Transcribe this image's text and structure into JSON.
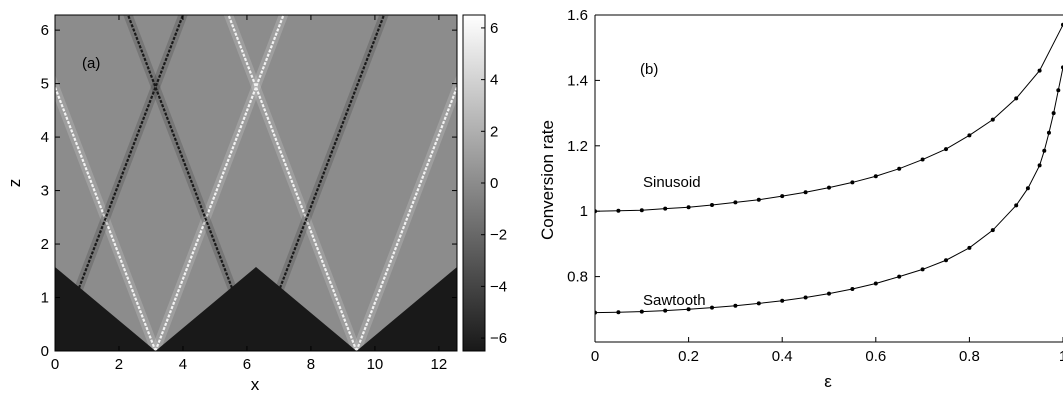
{
  "chart_data": [
    {
      "type": "heatmap",
      "panel_label": "(a)",
      "xlabel": "x",
      "ylabel": "z",
      "xlim": [
        0,
        12.566
      ],
      "ylim": [
        0,
        6.283
      ],
      "xticks": [
        "0",
        "2",
        "4",
        "6",
        "8",
        "10",
        "12"
      ],
      "yticks": [
        "0",
        "1",
        "2",
        "3",
        "4",
        "5",
        "6"
      ],
      "colorbar": {
        "range": [
          -6.5,
          6.5
        ],
        "ticks": [
          "6",
          "4",
          "2",
          "0",
          "−2",
          "−4",
          "−6"
        ],
        "colormap": "gray"
      },
      "topography": {
        "type": "sawtooth",
        "x": [
          0,
          3.1416,
          6.2832,
          9.4248,
          12.566
        ],
        "z": [
          1.5708,
          0,
          1.5708,
          0,
          1.5708
        ]
      },
      "beams": [
        {
          "x0": 3.1416,
          "dx": 1,
          "dz": 1.5708,
          "color": "light"
        },
        {
          "x0": 3.1416,
          "dx": -1,
          "dz": 1.5708,
          "color": "light"
        },
        {
          "x0": 9.4248,
          "dx": 1,
          "dz": 1.5708,
          "color": "light"
        },
        {
          "x0": 9.4248,
          "dx": -1,
          "dz": 1.5708,
          "color": "light"
        },
        {
          "x0": 0,
          "dx": 1,
          "dz": 1.5708,
          "color": "dark"
        },
        {
          "x0": 0,
          "dx": -1,
          "dz": 1.5708,
          "color": "dark"
        },
        {
          "x0": 6.2832,
          "dx": 1,
          "dz": 1.5708,
          "color": "dark"
        },
        {
          "x0": 6.2832,
          "dx": -1,
          "dz": 1.5708,
          "color": "dark"
        }
      ]
    },
    {
      "type": "line",
      "panel_label": "(b)",
      "xlabel": "ε",
      "ylabel": "Conversion rate",
      "xlim": [
        0,
        1
      ],
      "ylim": [
        0.6,
        1.6
      ],
      "xticks": [
        "0",
        "0.2",
        "0.4",
        "0.6",
        "0.8",
        "1"
      ],
      "yticks": [
        "1.6",
        "1.4",
        "1.2",
        "1",
        "0.8"
      ],
      "series": [
        {
          "name": "Sinusoid",
          "x": [
            0,
            0.05,
            0.1,
            0.15,
            0.2,
            0.25,
            0.3,
            0.35,
            0.4,
            0.45,
            0.5,
            0.55,
            0.6,
            0.65,
            0.7,
            0.75,
            0.8,
            0.85,
            0.9,
            0.95,
            1.0
          ],
          "y": [
            1.0,
            1.0015,
            1.003,
            1.008,
            1.012,
            1.019,
            1.027,
            1.035,
            1.046,
            1.058,
            1.072,
            1.088,
            1.107,
            1.13,
            1.158,
            1.19,
            1.232,
            1.28,
            1.345,
            1.43,
            1.57
          ]
        },
        {
          "name": "Sawtooth",
          "x": [
            0,
            0.05,
            0.1,
            0.15,
            0.2,
            0.25,
            0.3,
            0.35,
            0.4,
            0.45,
            0.5,
            0.55,
            0.6,
            0.65,
            0.7,
            0.75,
            0.8,
            0.85,
            0.9,
            0.925,
            0.95,
            0.96,
            0.97,
            0.98,
            0.99,
            1.0
          ],
          "y": [
            0.69,
            0.691,
            0.693,
            0.696,
            0.7,
            0.705,
            0.711,
            0.718,
            0.726,
            0.736,
            0.748,
            0.762,
            0.779,
            0.8,
            0.822,
            0.85,
            0.888,
            0.942,
            1.018,
            1.07,
            1.14,
            1.185,
            1.24,
            1.3,
            1.37,
            1.44
          ]
        }
      ],
      "annotations": [
        "Sinusoid",
        "Sawtooth"
      ]
    }
  ]
}
